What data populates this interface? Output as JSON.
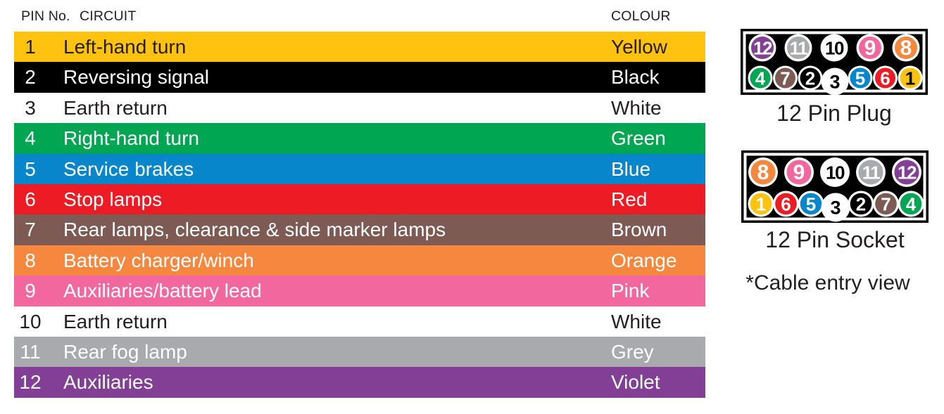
{
  "table": {
    "header": {
      "pin_no": "PIN No.",
      "circuit": "CIRCUIT",
      "colour": "COLOUR"
    },
    "rows": [
      {
        "pin": "1",
        "circuit": "Left-hand turn",
        "colour": "Yellow",
        "bg": "#FFC20E",
        "fg": "#231F20"
      },
      {
        "pin": "2",
        "circuit": "Reversing signal",
        "colour": "Black",
        "bg": "#000000",
        "fg": "#FFFFFF"
      },
      {
        "pin": "3",
        "circuit": "Earth return",
        "colour": "White",
        "bg": "#FFFFFF",
        "fg": "#231F20"
      },
      {
        "pin": "4",
        "circuit": "Right-hand turn",
        "colour": "Green",
        "bg": "#00A651",
        "fg": "#FFFFFF"
      },
      {
        "pin": "5",
        "circuit": "Service brakes",
        "colour": "Blue",
        "bg": "#0886CB",
        "fg": "#FFFFFF"
      },
      {
        "pin": "6",
        "circuit": "Stop lamps",
        "colour": "Red",
        "bg": "#ED1C24",
        "fg": "#FFFFFF"
      },
      {
        "pin": "7",
        "circuit": "Rear lamps, clearance & side marker lamps",
        "colour": "Brown",
        "bg": "#7E5A54",
        "fg": "#FFFFFF"
      },
      {
        "pin": "8",
        "circuit": "Battery charger/winch",
        "colour": "Orange",
        "bg": "#F5883E",
        "fg": "#FFFFFF"
      },
      {
        "pin": "9",
        "circuit": "Auxiliaries/battery lead",
        "colour": "Pink",
        "bg": "#F2679E",
        "fg": "#FFFFFF"
      },
      {
        "pin": "10",
        "circuit": "Earth return",
        "colour": "White",
        "bg": "#FFFFFF",
        "fg": "#231F20"
      },
      {
        "pin": "11",
        "circuit": "Rear fog lamp",
        "colour": "Grey",
        "bg": "#A8AAAD",
        "fg": "#FFFFFF"
      },
      {
        "pin": "12",
        "circuit": "Auxiliaries",
        "colour": "Violet",
        "bg": "#833E96",
        "fg": "#FFFFFF"
      }
    ]
  },
  "plug": {
    "label": "12 Pin Plug",
    "top_pins": [
      {
        "n": "12",
        "fill": "#833E96",
        "num": "#FFFFFF"
      },
      {
        "n": "11",
        "fill": "#A8AAAD",
        "num": "#FFFFFF"
      },
      {
        "n": "10",
        "fill": "#FFFFFF",
        "num": "#000000"
      },
      {
        "n": "9",
        "fill": "#F2679E",
        "num": "#FFFFFF"
      },
      {
        "n": "8",
        "fill": "#F5883E",
        "num": "#FFFFFF"
      }
    ],
    "bottom_pins": [
      {
        "n": "4",
        "fill": "#00A651",
        "num": "#FFFFFF"
      },
      {
        "n": "7",
        "fill": "#7E5A54",
        "num": "#FFFFFF"
      },
      {
        "n": "2",
        "fill": "#000000",
        "num": "#FFFFFF"
      },
      {
        "n": "3",
        "fill": "#FFFFFF",
        "num": "#000000"
      },
      {
        "n": "5",
        "fill": "#0886CB",
        "num": "#FFFFFF"
      },
      {
        "n": "6",
        "fill": "#ED1C24",
        "num": "#FFFFFF"
      },
      {
        "n": "1",
        "fill": "#FFC20E",
        "num": "#000000"
      }
    ]
  },
  "socket": {
    "label": "12 Pin Socket",
    "top_pins": [
      {
        "n": "8",
        "fill": "#F5883E",
        "num": "#FFFFFF"
      },
      {
        "n": "9",
        "fill": "#F2679E",
        "num": "#FFFFFF"
      },
      {
        "n": "10",
        "fill": "#FFFFFF",
        "num": "#000000"
      },
      {
        "n": "11",
        "fill": "#A8AAAD",
        "num": "#FFFFFF"
      },
      {
        "n": "12",
        "fill": "#833E96",
        "num": "#FFFFFF"
      }
    ],
    "bottom_pins": [
      {
        "n": "1",
        "fill": "#FFC20E",
        "num": "#FFFFFF"
      },
      {
        "n": "6",
        "fill": "#ED1C24",
        "num": "#FFFFFF"
      },
      {
        "n": "5",
        "fill": "#0886CB",
        "num": "#FFFFFF"
      },
      {
        "n": "3",
        "fill": "#FFFFFF",
        "num": "#000000"
      },
      {
        "n": "2",
        "fill": "#000000",
        "num": "#FFFFFF"
      },
      {
        "n": "7",
        "fill": "#7E5A54",
        "num": "#FFFFFF"
      },
      {
        "n": "4",
        "fill": "#00A651",
        "num": "#FFFFFF"
      }
    ]
  },
  "note": "*Cable entry view"
}
